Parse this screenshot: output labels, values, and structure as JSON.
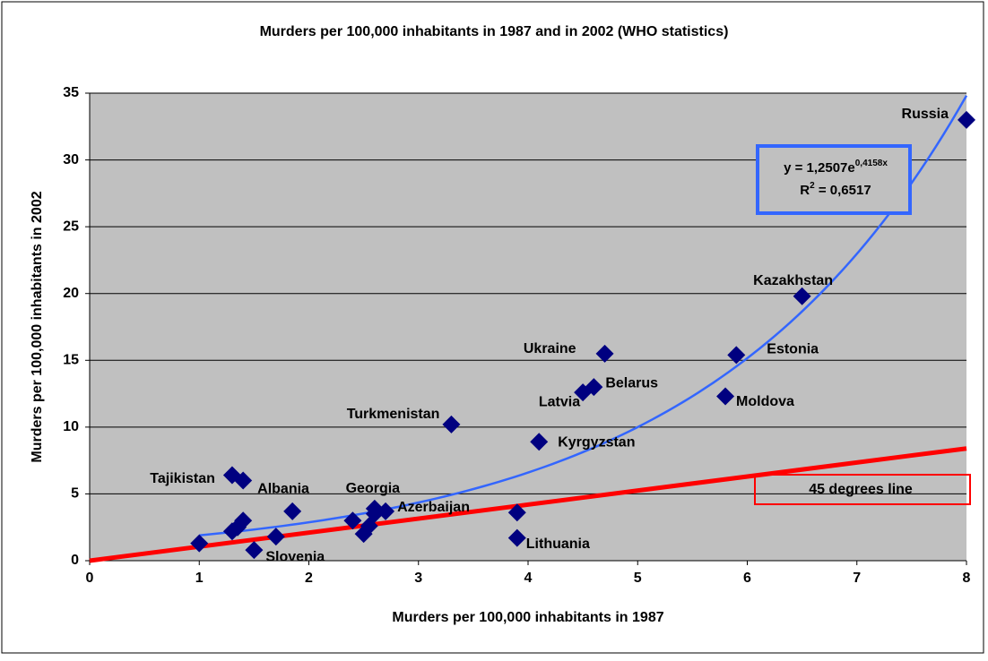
{
  "chart_data": {
    "type": "scatter",
    "title": "Murders per 100,000 inhabitants in 1987 and in 2002 (WHO statistics)",
    "x_label": "Murders per 100,000 inhabitants in 1987",
    "y_label": "Murders per 100,000 inhabitants  in 2002",
    "xlim": [
      0,
      8
    ],
    "xticks": [
      0,
      1,
      2,
      3,
      4,
      5,
      6,
      7,
      8
    ],
    "ylim": [
      0,
      35
    ],
    "yticks": [
      0,
      5,
      10,
      15,
      20,
      25,
      30,
      35
    ],
    "grid": true,
    "plot_background": "#c0c0c0",
    "series": [
      {
        "color": "#000080",
        "x": [
          8,
          6.5,
          5.9,
          5.8,
          4.7,
          4.6,
          4.5,
          4.1,
          3.3,
          3.9,
          1.3,
          1.4,
          2.6,
          2.7,
          1.5,
          3.9,
          1.0,
          1.3,
          1.35,
          1.4,
          1.7,
          1.85,
          2.4,
          2.5,
          2.55,
          2.6
        ],
        "values": [
          33,
          19.8,
          15.4,
          12.3,
          15.5,
          13,
          12.6,
          8.9,
          10.2,
          1.7,
          6.4,
          6.0,
          3.9,
          3.7,
          0.8,
          3.6,
          1.3,
          2.2,
          2.5,
          3.0,
          1.8,
          3.7,
          3.0,
          2.0,
          2.6,
          3.5
        ],
        "labels": [
          "Russia",
          "Kazakhstan",
          "Estonia",
          "Moldova",
          "Ukraine",
          "Belarus",
          "Latvia",
          "Kyrgyzstan",
          "Turkmenistan",
          "Lithuania",
          "Tajikistan",
          "Albania",
          "Georgia",
          "Azerbaijan",
          "Slovenia",
          null,
          null,
          null,
          null,
          null,
          null,
          null,
          null,
          null,
          null,
          null
        ]
      }
    ],
    "trendline": {
      "a": 1.2507,
      "b": 0.4158,
      "x_range": [
        1,
        8
      ],
      "color": "#3366ff",
      "equation": {
        "base": "y = 1,2507e",
        "exponent": "0,4158x"
      },
      "r2": {
        "base": "R",
        "exponent": "2",
        "rest": " = 0,6517"
      }
    },
    "reference_line": {
      "label": "45 degrees line",
      "x": [
        0,
        8
      ],
      "y": [
        0,
        8.4
      ],
      "color": "#ff0000"
    }
  }
}
